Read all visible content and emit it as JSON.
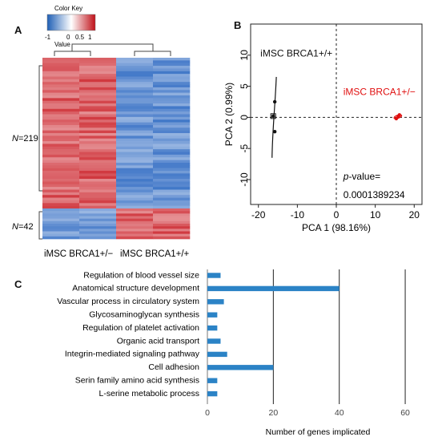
{
  "colors": {
    "low": "#1f6fc4",
    "mid": "#ffffff",
    "high": "#c8161d",
    "bar": "#2b83c6",
    "pca_red": "#e01010"
  },
  "panel_a": {
    "label": "A",
    "color_key_title": "Color Key",
    "color_key_axis_label": "Value",
    "color_key_ticks": [
      "-1",
      "0",
      "0.5",
      "1"
    ],
    "group1_label": "N=219",
    "group2_label": "N=42",
    "col_labels": [
      "iMSC BRCA1+/−",
      "iMSC BRCA1+/+"
    ],
    "chart_data": {
      "type": "heatmap",
      "clusters": [
        {
          "name": "N=219",
          "genes": 219,
          "values_by_sample": [
            0.85,
            0.85,
            -0.85,
            -0.85
          ]
        },
        {
          "name": "N=42",
          "genes": 42,
          "values_by_sample": [
            -0.8,
            -0.8,
            0.85,
            0.85
          ]
        }
      ],
      "samples": [
        "iMSC BRCA1+/−",
        "iMSC BRCA1+/−",
        "iMSC BRCA1+/+",
        "iMSC BRCA1+/+"
      ],
      "color_range": [
        -1,
        1
      ]
    }
  },
  "panel_b": {
    "label": "B",
    "chart_data": {
      "type": "scatter",
      "xlabel": "PCA 1 (98.16%)",
      "ylabel": "PCA 2 (0.99%)",
      "xlim": [
        -22,
        22
      ],
      "ylim": [
        -14,
        15
      ],
      "xticks": [
        -20,
        -10,
        0,
        10,
        20
      ],
      "yticks": [
        -10,
        -5,
        0,
        5,
        10
      ],
      "series": [
        {
          "name": "iMSC BRCA1+/+",
          "color": "#111111",
          "points": [
            [
              -15.8,
              2.5
            ],
            [
              -15.8,
              -2.3
            ],
            [
              -16.2,
              0.2
            ]
          ]
        },
        {
          "name": "iMSC BRCA1+/−",
          "color": "#e01010",
          "points": [
            [
              15.4,
              -0.2
            ],
            [
              15.9,
              0.1
            ],
            [
              16.2,
              0.4
            ]
          ]
        }
      ],
      "annotation_p_label": "p",
      "annotation_value_label": "-value=",
      "annotation_value": "0.0001389234"
    }
  },
  "panel_c": {
    "label": "C",
    "chart_data": {
      "type": "bar",
      "orientation": "horizontal",
      "categories": [
        "Regulation of blood vessel size",
        "Anatomical structure development",
        "Vascular process in circulatory system",
        "Glycosaminoglycan synthesis",
        "Regulation of platelet activation",
        "Organic acid transport",
        "Integrin-mediated signaling pathway",
        "Cell adhesion",
        "Serin family amino acid synthesis",
        "L-serine metabolic process"
      ],
      "values": [
        4,
        40,
        5,
        3,
        3,
        4,
        6,
        20,
        3,
        3
      ],
      "xlabel": "Number of genes implicated",
      "xlim": [
        0,
        68
      ],
      "xticks": [
        0,
        20,
        40,
        60
      ],
      "grid": true
    }
  }
}
